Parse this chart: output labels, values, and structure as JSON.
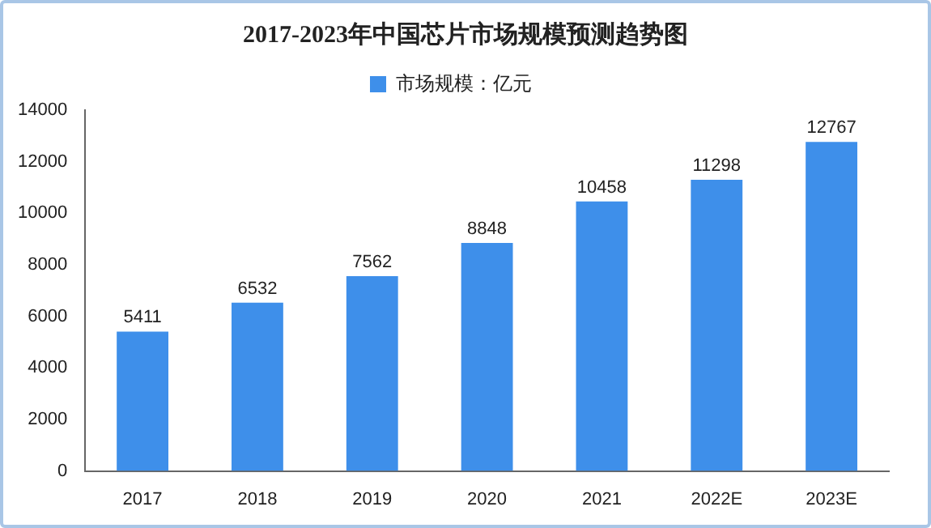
{
  "chart_data": {
    "type": "bar",
    "title": "2017-2023年中国芯片市场规模预测趋势图",
    "categories": [
      "2017",
      "2018",
      "2019",
      "2020",
      "2021",
      "2022E",
      "2023E"
    ],
    "series": [
      {
        "name": "市场规模：亿元",
        "color": "#3e8fea",
        "values": [
          5411,
          6532,
          7562,
          8848,
          10458,
          11298,
          12767
        ]
      }
    ],
    "ylim": [
      0,
      14000
    ],
    "yticks": [
      0,
      2000,
      4000,
      6000,
      8000,
      10000,
      12000,
      14000
    ],
    "grid": false,
    "legend": "top",
    "data_labels": true
  }
}
